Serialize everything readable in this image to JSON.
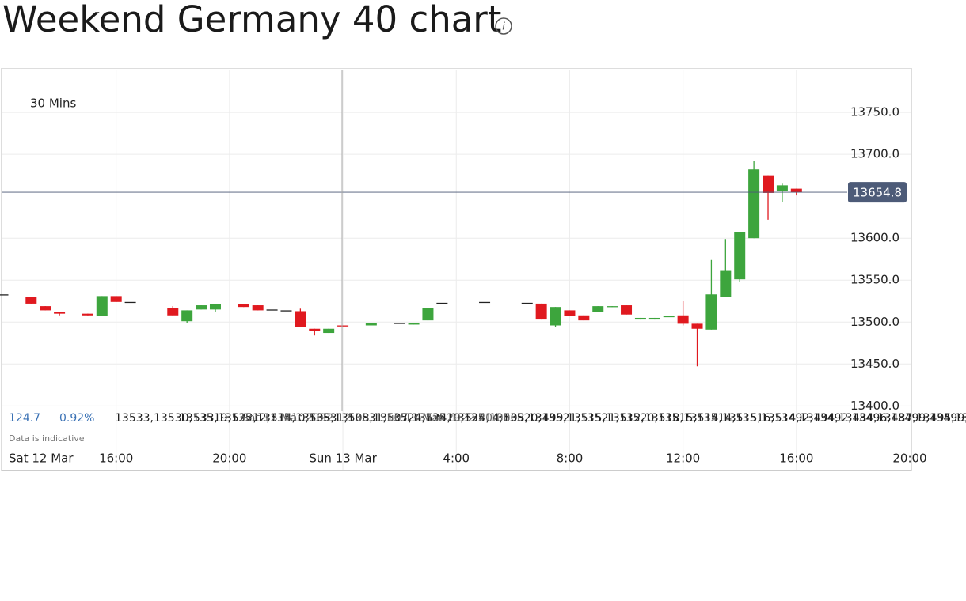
{
  "chart_data": {
    "type": "candlestick",
    "title": "Weekend Germany 40 chart",
    "interval": "30 Mins",
    "change": 124.7,
    "change_pct": "0.92%",
    "high": [
      13533,
      13530,
      13519,
      13512,
      13510,
      13531,
      13531,
      13524,
      13519,
      13514,
      13520,
      13521,
      13521,
      13520,
      13515,
      13514,
      13516,
      13492,
      13492,
      13496,
      13499,
      13499,
      13499,
      13517,
      13523,
      13524,
      13523,
      13522,
      13518,
      13514,
      13508,
      13519,
      13519,
      13520,
      13505,
      13505,
      13507,
      13525,
      13498,
      13574,
      13599,
      13607,
      13691.7,
      13675,
      13665,
      13659
    ],
    "low": [
      13533,
      13522,
      13514,
      13508,
      13508,
      13507,
      13524,
      13524,
      13508,
      13499,
      13515,
      13512,
      13518,
      13514,
      13515,
      13514,
      13494,
      13484,
      13487,
      13495,
      13496,
      13499,
      13497,
      13502,
      13523,
      13524,
      13523,
      13503,
      13494,
      13507,
      13502,
      13512,
      13518,
      13509,
      13503,
      13503,
      13506,
      13496,
      13447.2,
      13491,
      13530,
      13548,
      13600,
      13622,
      13643,
      13651
    ],
    "range": "Sat 12 Mar 2022 12:30 - Sun 13 Mar 2022 20:00",
    "note": "Data is indicative",
    "last_price": 13654.8,
    "colors": {
      "up": "#3da53d",
      "down": "#e0191f",
      "flat": "#222222",
      "last": "#4d5b78"
    },
    "grid": true,
    "xlim": [
      "Sat 12 Mar 2022 12:00",
      "Sun 13 Mar 2022 20:00"
    ],
    "xticks": [
      {
        "value": "Sat 12 Mar 2022 12:00",
        "label": "Sat 12 Mar"
      },
      {
        "value": "Sat 12 Mar 2022 16:00",
        "label": "16:00"
      },
      {
        "value": "Sat 12 Mar 2022 20:00",
        "label": "20:00"
      },
      {
        "value": "Sun 13 Mar 2022 00:00",
        "label": "Sun 13 Mar"
      },
      {
        "value": "Sun 13 Mar 2022 04:00",
        "label": "4:00"
      },
      {
        "value": "Sun 13 Mar 2022 08:00",
        "label": "8:00"
      },
      {
        "value": "Sun 13 Mar 2022 12:00",
        "label": "12:00"
      },
      {
        "value": "Sun 13 Mar 2022 16:00",
        "label": "16:00"
      },
      {
        "value": "Sun 13 Mar 2022 20:00",
        "label": "20:00"
      }
    ],
    "ylim": [
      13323,
      13801
    ],
    "yticks": [
      {
        "value": 13400,
        "label": "13400.0"
      },
      {
        "value": 13450,
        "label": "13450.0"
      },
      {
        "value": 13500,
        "label": "13500.0"
      },
      {
        "value": 13550,
        "label": "13550.0"
      },
      {
        "value": 13600,
        "label": "13600.0"
      },
      {
        "value": 13700,
        "label": "13700.0"
      },
      {
        "value": 13750,
        "label": "13750.0"
      }
    ],
    "x": [
      "Sat 12 Mar 2022 12:00",
      "Sat 12 Mar 2022 13:00",
      "Sat 12 Mar 2022 13:30",
      "Sat 12 Mar 2022 14:00",
      "Sat 12 Mar 2022 15:00",
      "Sat 12 Mar 2022 15:30",
      "Sat 12 Mar 2022 16:00",
      "Sat 12 Mar 2022 16:30",
      "Sat 12 Mar 2022 18:00",
      "Sat 12 Mar 2022 18:30",
      "Sat 12 Mar 2022 19:00",
      "Sat 12 Mar 2022 19:30",
      "Sat 12 Mar 2022 20:30",
      "Sat 12 Mar 2022 21:00",
      "Sat 12 Mar 2022 21:30",
      "Sat 12 Mar 2022 22:00",
      "Sat 12 Mar 2022 22:30",
      "Sat 12 Mar 2022 23:00",
      "Sat 12 Mar 2022 23:30",
      "Sun 13 Mar 2022 00:00",
      "Sun 13 Mar 2022 01:00",
      "Sun 13 Mar 2022 02:00",
      "Sun 13 Mar 2022 02:30",
      "Sun 13 Mar 2022 03:00",
      "Sun 13 Mar 2022 03:30",
      "Sun 13 Mar 2022 05:00",
      "Sun 13 Mar 2022 06:30",
      "Sun 13 Mar 2022 07:00",
      "Sun 13 Mar 2022 07:30",
      "Sun 13 Mar 2022 08:00",
      "Sun 13 Mar 2022 08:30",
      "Sun 13 Mar 2022 09:00",
      "Sun 13 Mar 2022 09:30",
      "Sun 13 Mar 2022 10:00",
      "Sun 13 Mar 2022 10:30",
      "Sun 13 Mar 2022 11:00",
      "Sun 13 Mar 2022 11:30",
      "Sun 13 Mar 2022 12:00",
      "Sun 13 Mar 2022 12:30",
      "Sun 13 Mar 2022 13:00",
      "Sun 13 Mar 2022 13:30",
      "Sun 13 Mar 2022 14:00",
      "Sun 13 Mar 2022 14:30",
      "Sun 13 Mar 2022 15:00",
      "Sun 13 Mar 2022 15:30",
      "Sun 13 Mar 2022 16:00"
    ],
    "open": [
      13533,
      13530,
      13519,
      13512,
      13510,
      13507,
      13531,
      13524,
      13517,
      13501,
      13515,
      13515,
      13521,
      13520,
      13515,
      13514,
      13513,
      13492,
      13487,
      13496,
      13496,
      13499,
      13497,
      13502,
      13523,
      13524,
      13523,
      13522,
      13496,
      13514,
      13508,
      13512,
      13518,
      13520,
      13503,
      13503,
      13506,
      13508,
      13498,
      13491,
      13530,
      13551,
      13600,
      13675,
      13656,
      13659
    ],
    "close": [
      13533,
      13522,
      13514,
      13510,
      13508,
      13531,
      13524,
      13524,
      13508,
      13514,
      13520,
      13521,
      13518,
      13514,
      13515,
      13514,
      13494,
      13489,
      13492,
      13495,
      13499,
      13499,
      13499,
      13517,
      13523,
      13524,
      13523,
      13503,
      13518,
      13507,
      13502,
      13519,
      13519,
      13509,
      13505,
      13505,
      13507,
      13498,
      13492,
      13533,
      13561,
      13607,
      13682,
      13654,
      13663,
      13654.8
    ]
  }
}
